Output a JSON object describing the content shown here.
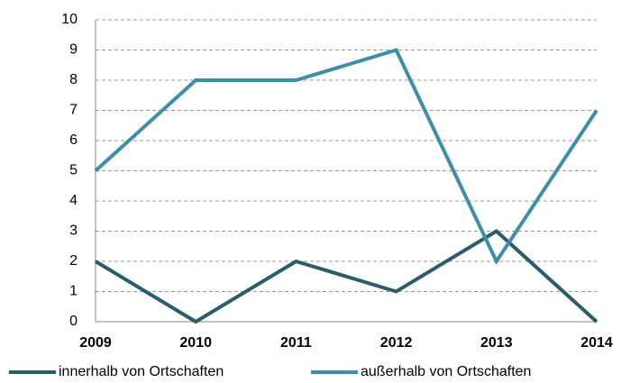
{
  "chart_data": {
    "type": "line",
    "categories": [
      "2009",
      "2010",
      "2011",
      "2012",
      "2013",
      "2014"
    ],
    "series": [
      {
        "name": "innerhalb von Ortschaften",
        "color": "#2b5c6b",
        "values": [
          2,
          0,
          2,
          1,
          3,
          0
        ]
      },
      {
        "name": "außerhalb von Ortschaften",
        "color": "#3d8ea8",
        "values": [
          5,
          8,
          8,
          9,
          2,
          7
        ]
      }
    ],
    "ylim": [
      0,
      10
    ],
    "yticks": [
      0,
      1,
      2,
      3,
      4,
      5,
      6,
      7,
      8,
      9,
      10
    ],
    "grid": true,
    "legend": "bottom"
  }
}
